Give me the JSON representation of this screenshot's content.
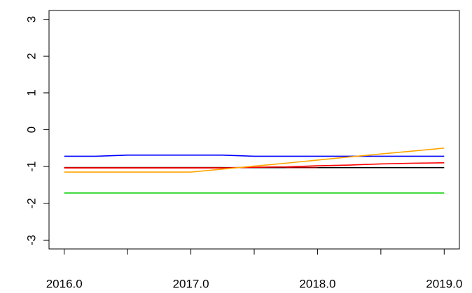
{
  "chart_data": {
    "type": "line",
    "x": [
      2016,
      2016.25,
      2016.5,
      2016.75,
      2017,
      2017.25,
      2017.5,
      2017.75,
      2018,
      2018.25,
      2018.5,
      2018.75,
      2019
    ],
    "series": [
      {
        "name": "blue",
        "color": "#0000ff",
        "values": [
          -0.72,
          -0.72,
          -0.69,
          -0.69,
          -0.69,
          -0.69,
          -0.72,
          -0.72,
          -0.72,
          -0.72,
          -0.72,
          -0.72,
          -0.72
        ]
      },
      {
        "name": "green",
        "color": "#00cd00",
        "values": [
          -1.72,
          -1.72,
          -1.72,
          -1.72,
          -1.72,
          -1.72,
          -1.72,
          -1.72,
          -1.72,
          -1.72,
          -1.72,
          -1.72,
          -1.72
        ]
      },
      {
        "name": "black",
        "color": "#000000",
        "values": [
          -1.03,
          -1.03,
          -1.03,
          -1.03,
          -1.03,
          -1.03,
          -1.03,
          -1.03,
          -1.03,
          -1.03,
          -1.03,
          -1.03,
          -1.03
        ]
      },
      {
        "name": "darkred",
        "color": "#8b0000",
        "values": [
          -1.03,
          -1.03,
          -1.03,
          -1.03,
          -1.03,
          -1.03,
          null,
          -1.03,
          -1.03,
          null,
          null,
          null,
          null
        ]
      },
      {
        "name": "red",
        "color": "#ff0000",
        "values": [
          -1.04,
          -1.04,
          -1.04,
          -1.04,
          -1.04,
          -1.04,
          -1.02,
          -1.01,
          -0.98,
          -0.96,
          -0.93,
          -0.91,
          -0.9
        ]
      },
      {
        "name": "orange",
        "color": "#ffa500",
        "values": [
          -1.15,
          -1.15,
          -1.15,
          -1.15,
          -1.15,
          -1.07,
          -0.99,
          -0.91,
          -0.825,
          -0.74,
          -0.66,
          -0.58,
          -0.5
        ]
      }
    ],
    "xlim": [
      2015.88,
      2019.12
    ],
    "ylim": [
      -3.24,
      3.24
    ],
    "xticks": [
      {
        "value": 2016,
        "label": "2016.0"
      },
      {
        "value": 2016.5,
        "label": null
      },
      {
        "value": 2017,
        "label": "2017.0"
      },
      {
        "value": 2017.5,
        "label": null
      },
      {
        "value": 2018,
        "label": "2018.0"
      },
      {
        "value": 2018.5,
        "label": null
      },
      {
        "value": 2019,
        "label": "2019.0"
      }
    ],
    "yticks": [
      -3,
      -2,
      -1,
      0,
      1,
      2,
      3
    ]
  }
}
